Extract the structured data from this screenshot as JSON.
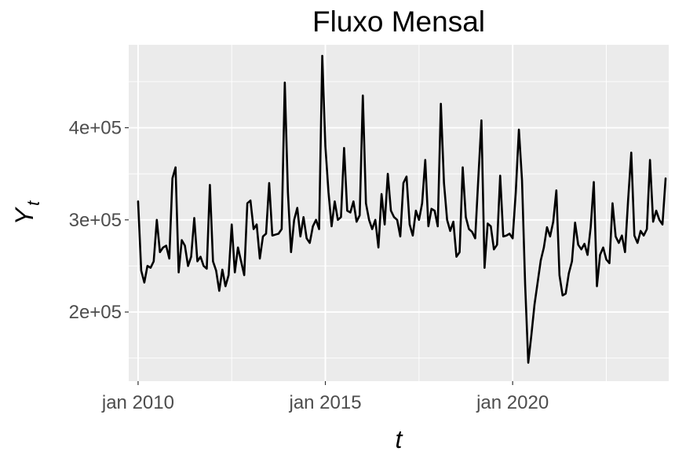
{
  "chart_data": {
    "type": "line",
    "title": "Fluxo Mensal",
    "xlabel": "t",
    "ylabel": {
      "main": "Y",
      "subscript": "t"
    },
    "x_start": "2010-01",
    "frequency": "monthly",
    "x_ticks": [
      {
        "date": "2010-01",
        "label": "jan 2010"
      },
      {
        "date": "2015-01",
        "label": "jan 2015"
      },
      {
        "date": "2020-01",
        "label": "jan 2020"
      }
    ],
    "x_minor_ticks": [
      "2012-07",
      "2017-07",
      "2022-07"
    ],
    "xlim": [
      "2009-10",
      "2024-03"
    ],
    "y_ticks": [
      {
        "value": 200000,
        "label": "2e+05"
      },
      {
        "value": 300000,
        "label": "3e+05"
      },
      {
        "value": 400000,
        "label": "4e+05"
      }
    ],
    "ylim": [
      125000,
      490000
    ],
    "grid": true,
    "background": "#ebebeb",
    "gridline_color": "#ffffff",
    "line_color": "#000000",
    "series": [
      {
        "values": [
          320000,
          245000,
          232000,
          250000,
          248000,
          255000,
          300000,
          265000,
          270000,
          272000,
          258000,
          345000,
          357000,
          243000,
          278000,
          272000,
          250000,
          260000,
          302000,
          255000,
          260000,
          250000,
          247000,
          338000,
          255000,
          245000,
          223000,
          246000,
          228000,
          240000,
          295000,
          243000,
          270000,
          255000,
          240000,
          318000,
          321000,
          290000,
          295000,
          258000,
          282000,
          285000,
          340000,
          283000,
          284000,
          285000,
          290000,
          449000,
          330000,
          265000,
          300000,
          313000,
          282000,
          303000,
          280000,
          275000,
          293000,
          300000,
          290000,
          478000,
          380000,
          330000,
          293000,
          320000,
          300000,
          303000,
          378000,
          310000,
          308000,
          320000,
          298000,
          305000,
          435000,
          318000,
          300000,
          290000,
          300000,
          270000,
          328000,
          295000,
          350000,
          310000,
          303000,
          300000,
          282000,
          340000,
          347000,
          295000,
          283000,
          310000,
          300000,
          318000,
          365000,
          293000,
          312000,
          310000,
          293000,
          426000,
          340000,
          300000,
          288000,
          298000,
          260000,
          265000,
          357000,
          303000,
          290000,
          287000,
          280000,
          345000,
          408000,
          248000,
          296000,
          293000,
          268000,
          273000,
          348000,
          282000,
          283000,
          285000,
          280000,
          330000,
          398000,
          343000,
          230000,
          145000,
          175000,
          208000,
          232000,
          256000,
          270000,
          292000,
          282000,
          298000,
          332000,
          240000,
          218000,
          220000,
          242000,
          255000,
          297000,
          273000,
          268000,
          274000,
          262000,
          292000,
          341000,
          228000,
          262000,
          270000,
          257000,
          253000,
          318000,
          282000,
          275000,
          283000,
          265000,
          322000,
          373000,
          283000,
          275000,
          288000,
          283000,
          290000,
          365000,
          298000,
          310000,
          300000,
          295000,
          345000
        ]
      }
    ]
  }
}
